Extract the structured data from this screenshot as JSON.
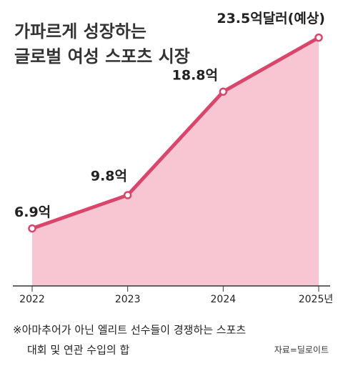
{
  "chart_data": {
    "type": "area",
    "title_lines": [
      "가파르게 성장하는",
      "글로벌 여성 스포츠 시장"
    ],
    "categories": [
      "2022",
      "2023",
      "2024",
      "2025년"
    ],
    "values": [
      6.9,
      9.8,
      18.8,
      23.5
    ],
    "value_labels": [
      "6.9억",
      "9.8억",
      "18.8억",
      "23.5억달러(예상)"
    ],
    "color": "#d9466b",
    "fill": "#f8c6d2",
    "ylim": [
      1.9,
      25
    ],
    "note_lines": [
      "※아마추어가 아닌 엘리트 선수들이 경쟁하는 스포츠",
      "대회 및 연관 수입의 합"
    ],
    "source": "자료=딜로이트"
  }
}
